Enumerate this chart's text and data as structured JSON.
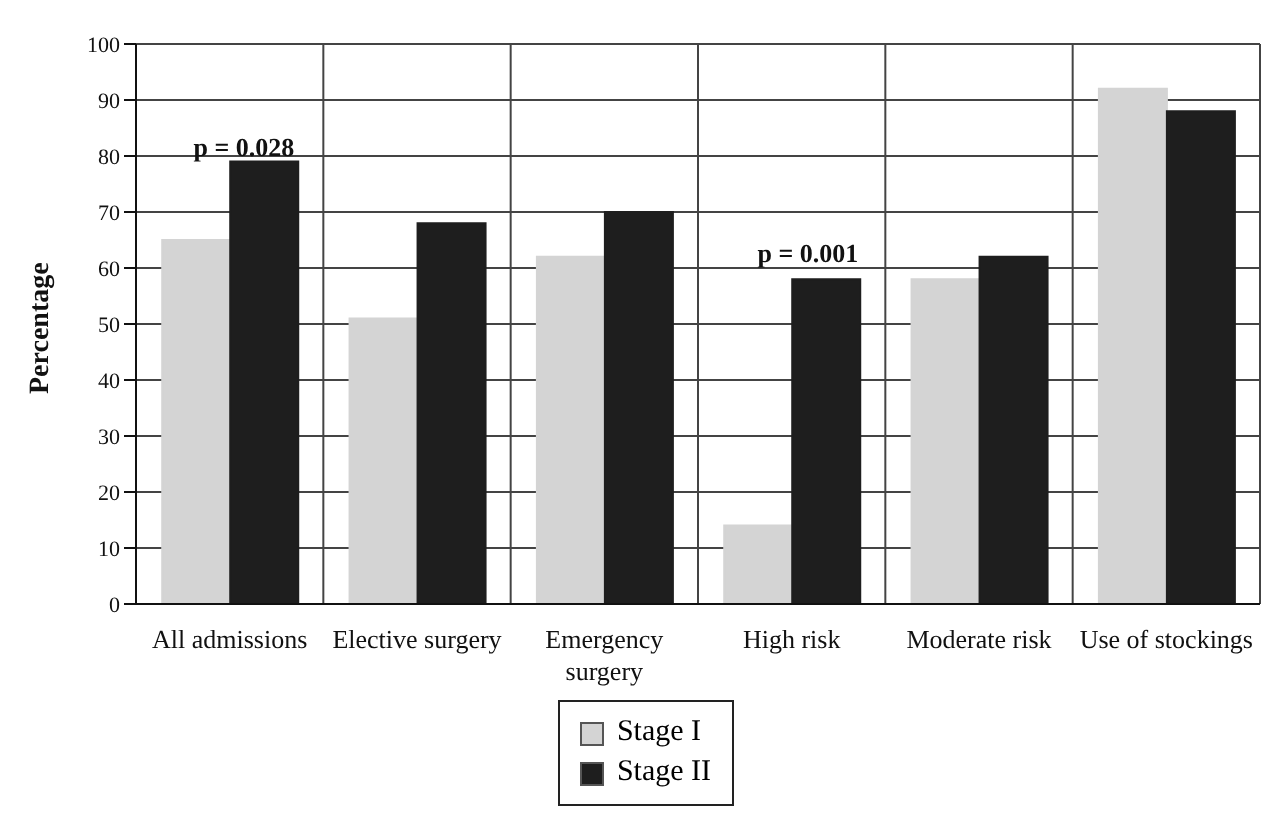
{
  "chart_data": {
    "type": "bar",
    "ylabel": "Percentage",
    "categories": [
      "All admissions",
      "Elective surgery",
      "Emergency surgery",
      "High risk",
      "Moderate risk",
      "Use of stockings"
    ],
    "series": [
      {
        "name": "Stage I",
        "color": "#d4d4d4",
        "values": [
          65,
          51,
          62,
          14,
          58,
          92
        ]
      },
      {
        "name": "Stage II",
        "color": "#1e1e1e",
        "values": [
          79,
          68,
          70,
          58,
          62,
          88
        ]
      }
    ],
    "ylim": [
      0,
      100
    ],
    "yticks": [
      0,
      10,
      20,
      30,
      40,
      50,
      60,
      70,
      80,
      90,
      100
    ],
    "grid": true,
    "legend": "bottom",
    "annotations": [
      "p = 0.028",
      "p = 0.001"
    ]
  }
}
